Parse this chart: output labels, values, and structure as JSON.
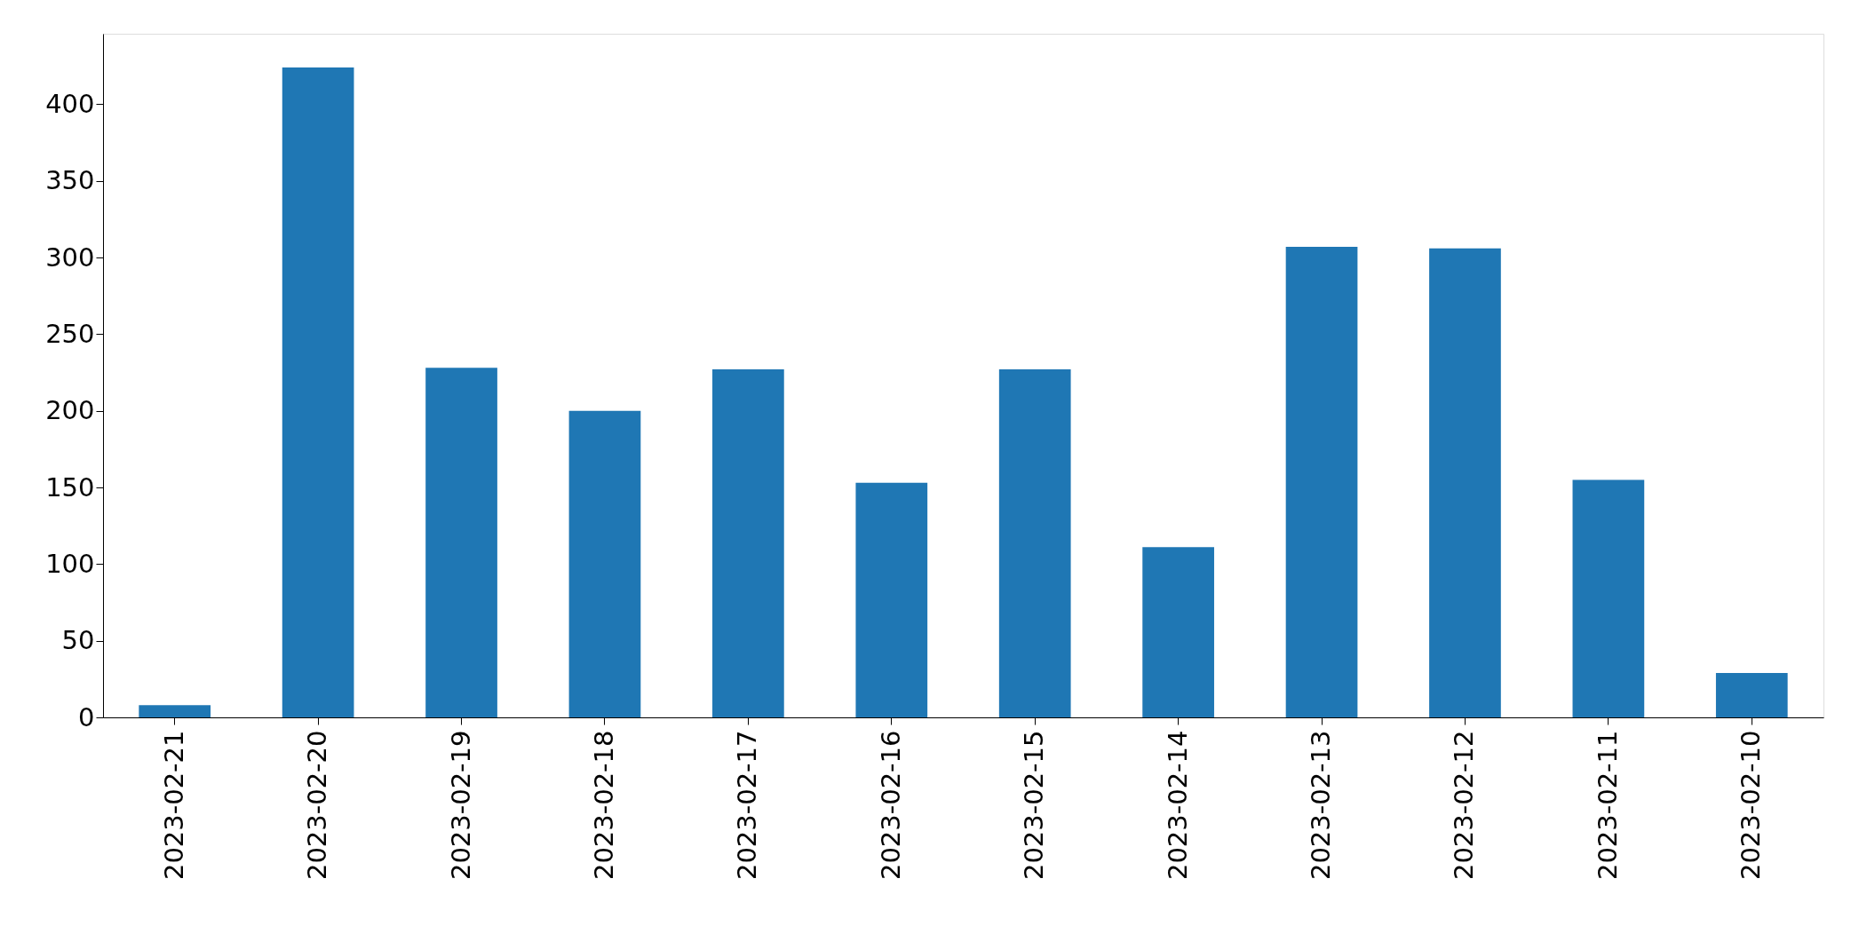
{
  "chart_data": {
    "type": "bar",
    "categories": [
      "2023-02-21",
      "2023-02-20",
      "2023-02-19",
      "2023-02-18",
      "2023-02-17",
      "2023-02-16",
      "2023-02-15",
      "2023-02-14",
      "2023-02-13",
      "2023-02-12",
      "2023-02-11",
      "2023-02-10"
    ],
    "values": [
      8,
      424,
      228,
      200,
      227,
      153,
      227,
      111,
      307,
      306,
      155,
      29
    ],
    "color": "#1f77b4",
    "ylim": [
      0,
      446
    ],
    "yticks": [
      0,
      50,
      100,
      150,
      200,
      250,
      300,
      350,
      400
    ],
    "grid": false
  }
}
